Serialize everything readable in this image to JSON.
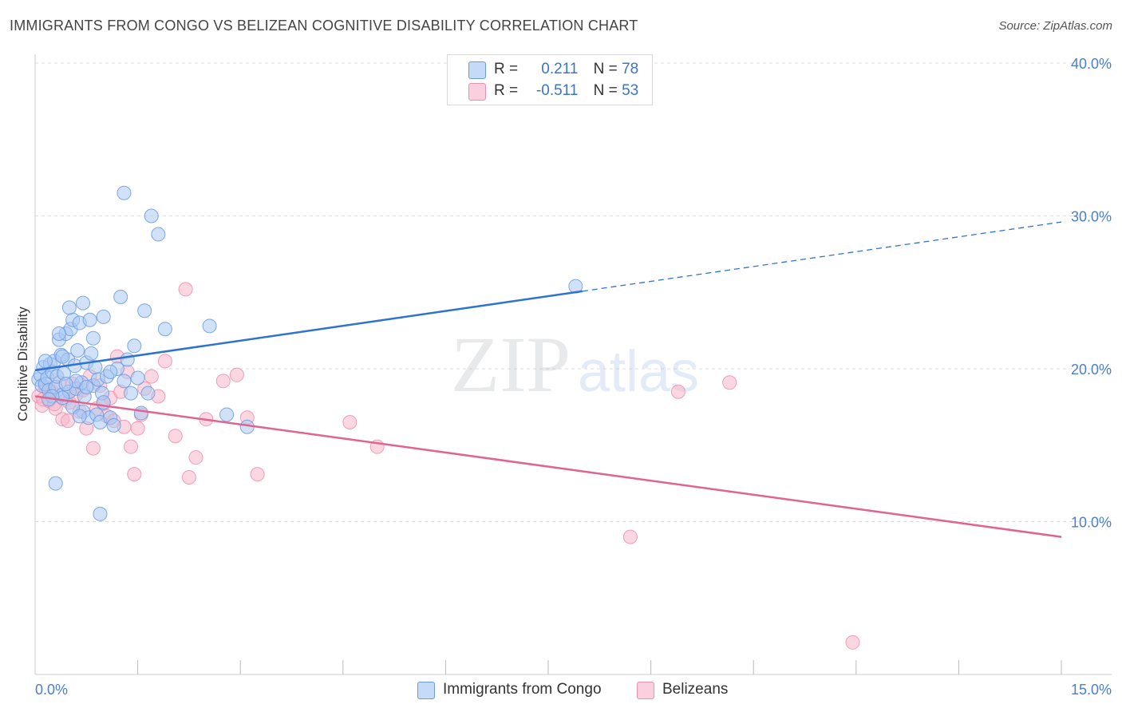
{
  "title": "IMMIGRANTS FROM CONGO VS BELIZEAN COGNITIVE DISABILITY CORRELATION CHART",
  "source": "Source: ZipAtlas.com",
  "watermark": {
    "zip": "ZIP",
    "atlas": "atlas"
  },
  "colors": {
    "blue_fill": "#a9c8f2",
    "blue_stroke": "#6b9be0",
    "blue_line": "#2f73d0",
    "pink_fill": "#f7b6cb",
    "pink_stroke": "#ec8fb0",
    "pink_line": "#e0648f",
    "grid": "#dddddd",
    "tick_text": "#4a7fcf"
  },
  "legend_top": {
    "rows": [
      {
        "r_label": "R =",
        "r_value": "0.211",
        "n_label": "N =",
        "n_value": "78"
      },
      {
        "r_label": "R =",
        "r_value": "-0.511",
        "n_label": "N =",
        "n_value": "53"
      }
    ]
  },
  "legend_bottom": [
    "Immigrants from Congo",
    "Belizeans"
  ],
  "chart_data": {
    "type": "scatter",
    "title": "IMMIGRANTS FROM CONGO VS BELIZEAN COGNITIVE DISABILITY CORRELATION CHART",
    "xlabel": "",
    "ylabel": "Cognitive Disability",
    "xlim": [
      0,
      15
    ],
    "ylim": [
      0,
      40
    ],
    "x_tick_labels": [
      "0.0%",
      "15.0%"
    ],
    "y_ticks": [
      10,
      20,
      30,
      40
    ],
    "y_tick_labels": [
      "10.0%",
      "20.0%",
      "30.0%",
      "40.0%"
    ],
    "grid": true,
    "legend_position": "top-center",
    "series": [
      {
        "name": "Immigrants from Congo",
        "r": 0.211,
        "n": 78,
        "trend": {
          "x0": 0,
          "y0": 19.9,
          "x1": 15,
          "y1": 29.6,
          "solid_until_x": 8.0
        },
        "points": [
          [
            0.05,
            19.3
          ],
          [
            0.08,
            19.6
          ],
          [
            0.1,
            18.9
          ],
          [
            0.12,
            20.1
          ],
          [
            0.15,
            19.0
          ],
          [
            0.18,
            19.4
          ],
          [
            0.2,
            18.6
          ],
          [
            0.22,
            20.3
          ],
          [
            0.25,
            19.8
          ],
          [
            0.28,
            20.5
          ],
          [
            0.3,
            18.8
          ],
          [
            0.32,
            19.5
          ],
          [
            0.35,
            21.9
          ],
          [
            0.38,
            20.9
          ],
          [
            0.4,
            18.3
          ],
          [
            0.42,
            19.7
          ],
          [
            0.45,
            22.3
          ],
          [
            0.48,
            20.6
          ],
          [
            0.5,
            18.5
          ],
          [
            0.52,
            22.6
          ],
          [
            0.55,
            23.2
          ],
          [
            0.58,
            20.2
          ],
          [
            0.6,
            18.7
          ],
          [
            0.62,
            21.2
          ],
          [
            0.65,
            23.0
          ],
          [
            0.68,
            19.1
          ],
          [
            0.7,
            17.2
          ],
          [
            0.72,
            18.2
          ],
          [
            0.75,
            20.4
          ],
          [
            0.78,
            16.8
          ],
          [
            0.8,
            23.2
          ],
          [
            0.82,
            21.0
          ],
          [
            0.85,
            18.9
          ],
          [
            0.88,
            20.1
          ],
          [
            0.9,
            17.0
          ],
          [
            0.92,
            19.3
          ],
          [
            0.95,
            16.5
          ],
          [
            0.98,
            18.4
          ],
          [
            1.0,
            17.8
          ],
          [
            1.05,
            19.5
          ],
          [
            1.1,
            16.8
          ],
          [
            1.15,
            16.3
          ],
          [
            1.2,
            20.0
          ],
          [
            1.25,
            24.7
          ],
          [
            1.3,
            19.2
          ],
          [
            1.35,
            20.6
          ],
          [
            1.4,
            18.4
          ],
          [
            1.45,
            21.5
          ],
          [
            1.5,
            19.4
          ],
          [
            1.55,
            17.1
          ],
          [
            1.6,
            23.8
          ],
          [
            1.65,
            18.4
          ],
          [
            1.7,
            30.0
          ],
          [
            1.8,
            28.8
          ],
          [
            1.9,
            22.6
          ],
          [
            2.55,
            22.8
          ],
          [
            2.8,
            17.0
          ],
          [
            3.1,
            16.2
          ],
          [
            0.35,
            22.3
          ],
          [
            0.5,
            24.0
          ],
          [
            0.7,
            24.3
          ],
          [
            1.0,
            23.4
          ],
          [
            0.4,
            18.1
          ],
          [
            0.6,
            19.2
          ],
          [
            0.3,
            12.5
          ],
          [
            0.95,
            10.5
          ],
          [
            1.3,
            31.5
          ],
          [
            7.9,
            25.4
          ],
          [
            0.15,
            20.5
          ],
          [
            0.25,
            18.2
          ],
          [
            0.45,
            19.0
          ],
          [
            0.55,
            17.5
          ],
          [
            0.75,
            18.8
          ],
          [
            0.85,
            22.0
          ],
          [
            0.65,
            16.9
          ],
          [
            1.1,
            19.8
          ],
          [
            0.2,
            18.0
          ],
          [
            0.4,
            20.8
          ]
        ]
      },
      {
        "name": "Belizeans",
        "r": -0.511,
        "n": 53,
        "trend": {
          "x0": 0,
          "y0": 18.2,
          "x1": 15,
          "y1": 9.0
        },
        "points": [
          [
            0.05,
            18.2
          ],
          [
            0.1,
            17.6
          ],
          [
            0.15,
            18.8
          ],
          [
            0.2,
            17.9
          ],
          [
            0.25,
            18.5
          ],
          [
            0.3,
            17.4
          ],
          [
            0.35,
            19.1
          ],
          [
            0.4,
            16.7
          ],
          [
            0.45,
            18.0
          ],
          [
            0.5,
            17.8
          ],
          [
            0.55,
            19.0
          ],
          [
            0.6,
            18.3
          ],
          [
            0.65,
            17.2
          ],
          [
            0.7,
            18.6
          ],
          [
            0.75,
            16.1
          ],
          [
            0.8,
            19.5
          ],
          [
            0.85,
            14.8
          ],
          [
            0.9,
            17.4
          ],
          [
            0.95,
            18.9
          ],
          [
            1.0,
            17.7
          ],
          [
            1.05,
            16.9
          ],
          [
            1.1,
            18.1
          ],
          [
            1.15,
            16.6
          ],
          [
            1.2,
            20.8
          ],
          [
            1.25,
            18.5
          ],
          [
            1.3,
            16.2
          ],
          [
            1.35,
            19.8
          ],
          [
            1.4,
            14.9
          ],
          [
            1.45,
            13.1
          ],
          [
            1.5,
            16.1
          ],
          [
            1.55,
            17.0
          ],
          [
            1.6,
            18.7
          ],
          [
            1.7,
            19.5
          ],
          [
            1.8,
            18.2
          ],
          [
            1.9,
            20.5
          ],
          [
            2.05,
            15.6
          ],
          [
            2.2,
            25.2
          ],
          [
            2.25,
            12.9
          ],
          [
            2.35,
            14.2
          ],
          [
            2.5,
            16.7
          ],
          [
            2.75,
            19.2
          ],
          [
            2.95,
            19.6
          ],
          [
            3.1,
            16.8
          ],
          [
            3.25,
            13.1
          ],
          [
            4.6,
            16.5
          ],
          [
            5.0,
            14.9
          ],
          [
            8.7,
            9.0
          ],
          [
            9.4,
            18.5
          ],
          [
            10.15,
            19.1
          ],
          [
            11.95,
            2.1
          ],
          [
            0.12,
            18.0
          ],
          [
            0.28,
            17.7
          ],
          [
            0.48,
            16.6
          ]
        ]
      }
    ]
  }
}
